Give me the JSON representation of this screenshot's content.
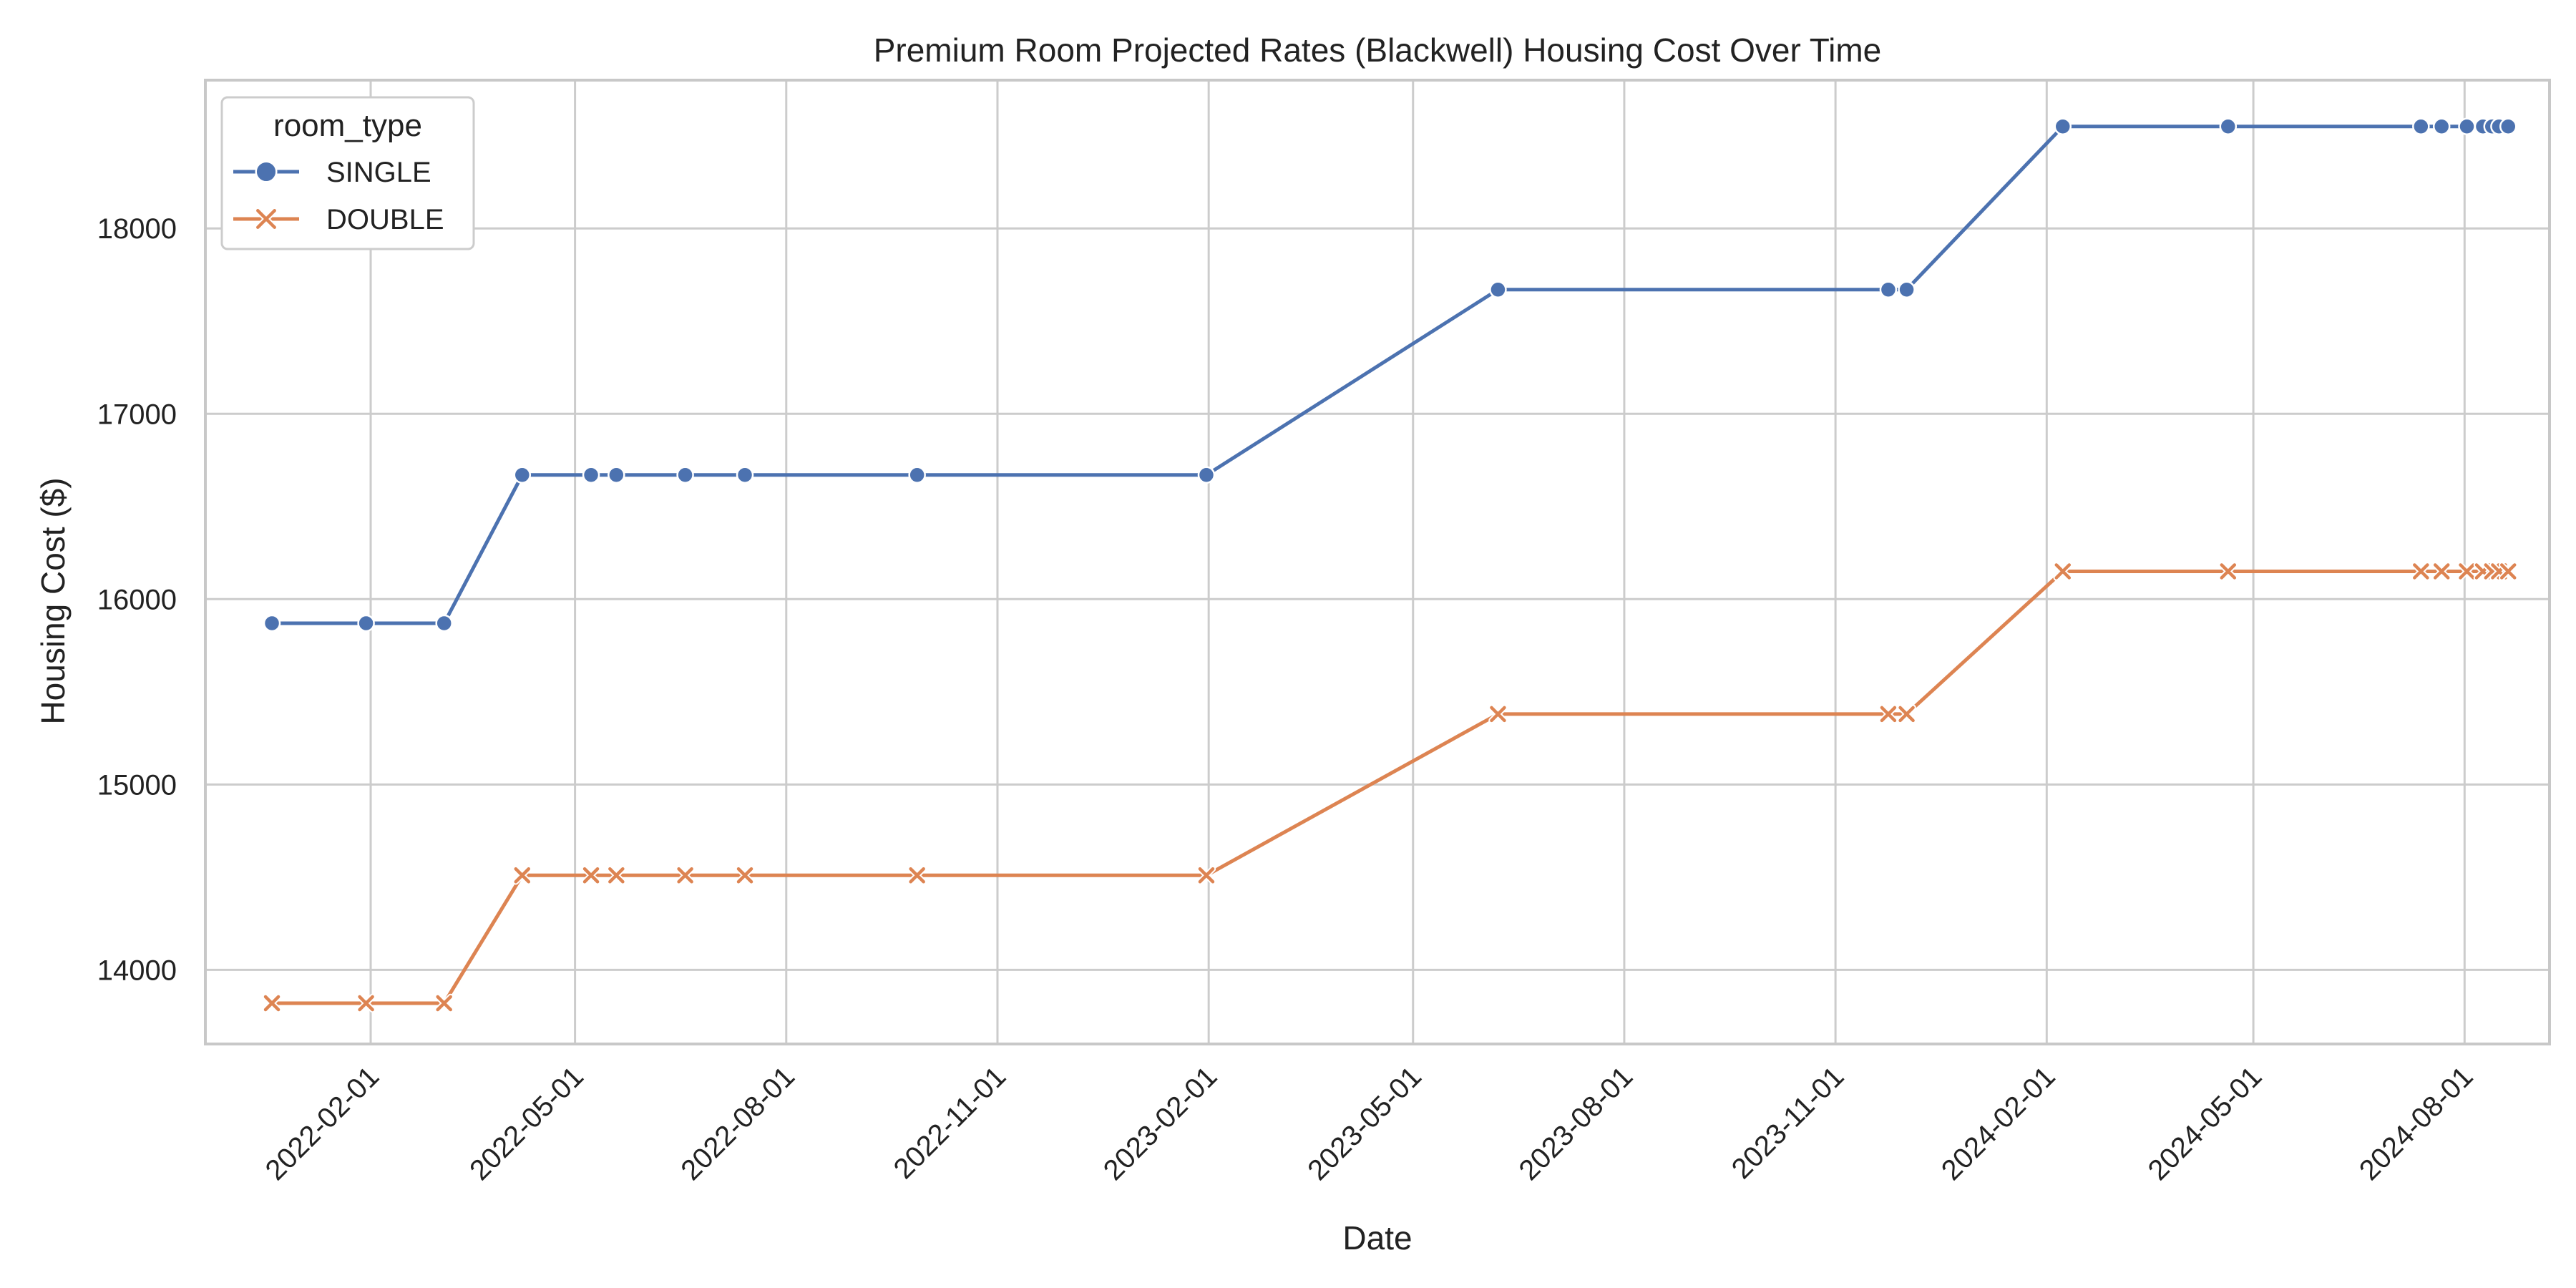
{
  "chart_data": {
    "type": "line",
    "title": "Premium Room Projected Rates (Blackwell) Housing Cost Over Time",
    "xlabel": "Date",
    "ylabel": "Housing Cost ($)",
    "x_ticks": [
      "2022-02-01",
      "2022-05-01",
      "2022-08-01",
      "2022-11-01",
      "2023-02-01",
      "2023-05-01",
      "2023-08-01",
      "2023-11-01",
      "2024-02-01",
      "2024-05-01",
      "2024-08-01"
    ],
    "y_ticks": [
      14000,
      15000,
      16000,
      17000,
      18000
    ],
    "xlim": [
      "2021-11-21",
      "2024-09-07"
    ],
    "ylim": [
      13600,
      18800
    ],
    "grid": true,
    "legend": {
      "title": "room_type",
      "position": "top-left"
    },
    "series": [
      {
        "name": "SINGLE",
        "color": "#4c72b0",
        "marker": "circle",
        "x": [
          "2021-12-20",
          "2022-01-30",
          "2022-03-05",
          "2022-04-08",
          "2022-05-08",
          "2022-05-19",
          "2022-06-18",
          "2022-07-14",
          "2022-09-27",
          "2023-01-31",
          "2023-06-07",
          "2023-11-24",
          "2023-12-02",
          "2024-02-08",
          "2024-04-20",
          "2024-07-13",
          "2024-07-22",
          "2024-08-02",
          "2024-08-09",
          "2024-08-13",
          "2024-08-16",
          "2024-08-20"
        ],
        "values": [
          15870,
          15870,
          15870,
          16670,
          16670,
          16670,
          16670,
          16670,
          16670,
          16670,
          17670,
          17670,
          17670,
          18550,
          18550,
          18550,
          18550,
          18550,
          18550,
          18550,
          18550,
          18550
        ]
      },
      {
        "name": "DOUBLE",
        "color": "#dd8452",
        "marker": "x",
        "x": [
          "2021-12-20",
          "2022-01-30",
          "2022-03-05",
          "2022-04-08",
          "2022-05-08",
          "2022-05-19",
          "2022-06-18",
          "2022-07-14",
          "2022-09-27",
          "2023-01-31",
          "2023-06-07",
          "2023-11-24",
          "2023-12-02",
          "2024-02-08",
          "2024-04-20",
          "2024-07-13",
          "2024-07-22",
          "2024-08-02",
          "2024-08-09",
          "2024-08-13",
          "2024-08-16",
          "2024-08-20"
        ],
        "values": [
          13820,
          13820,
          13820,
          14510,
          14510,
          14510,
          14510,
          14510,
          14510,
          14510,
          15380,
          15380,
          15380,
          16150,
          16150,
          16150,
          16150,
          16150,
          16150,
          16150,
          16150,
          16150
        ]
      }
    ]
  }
}
